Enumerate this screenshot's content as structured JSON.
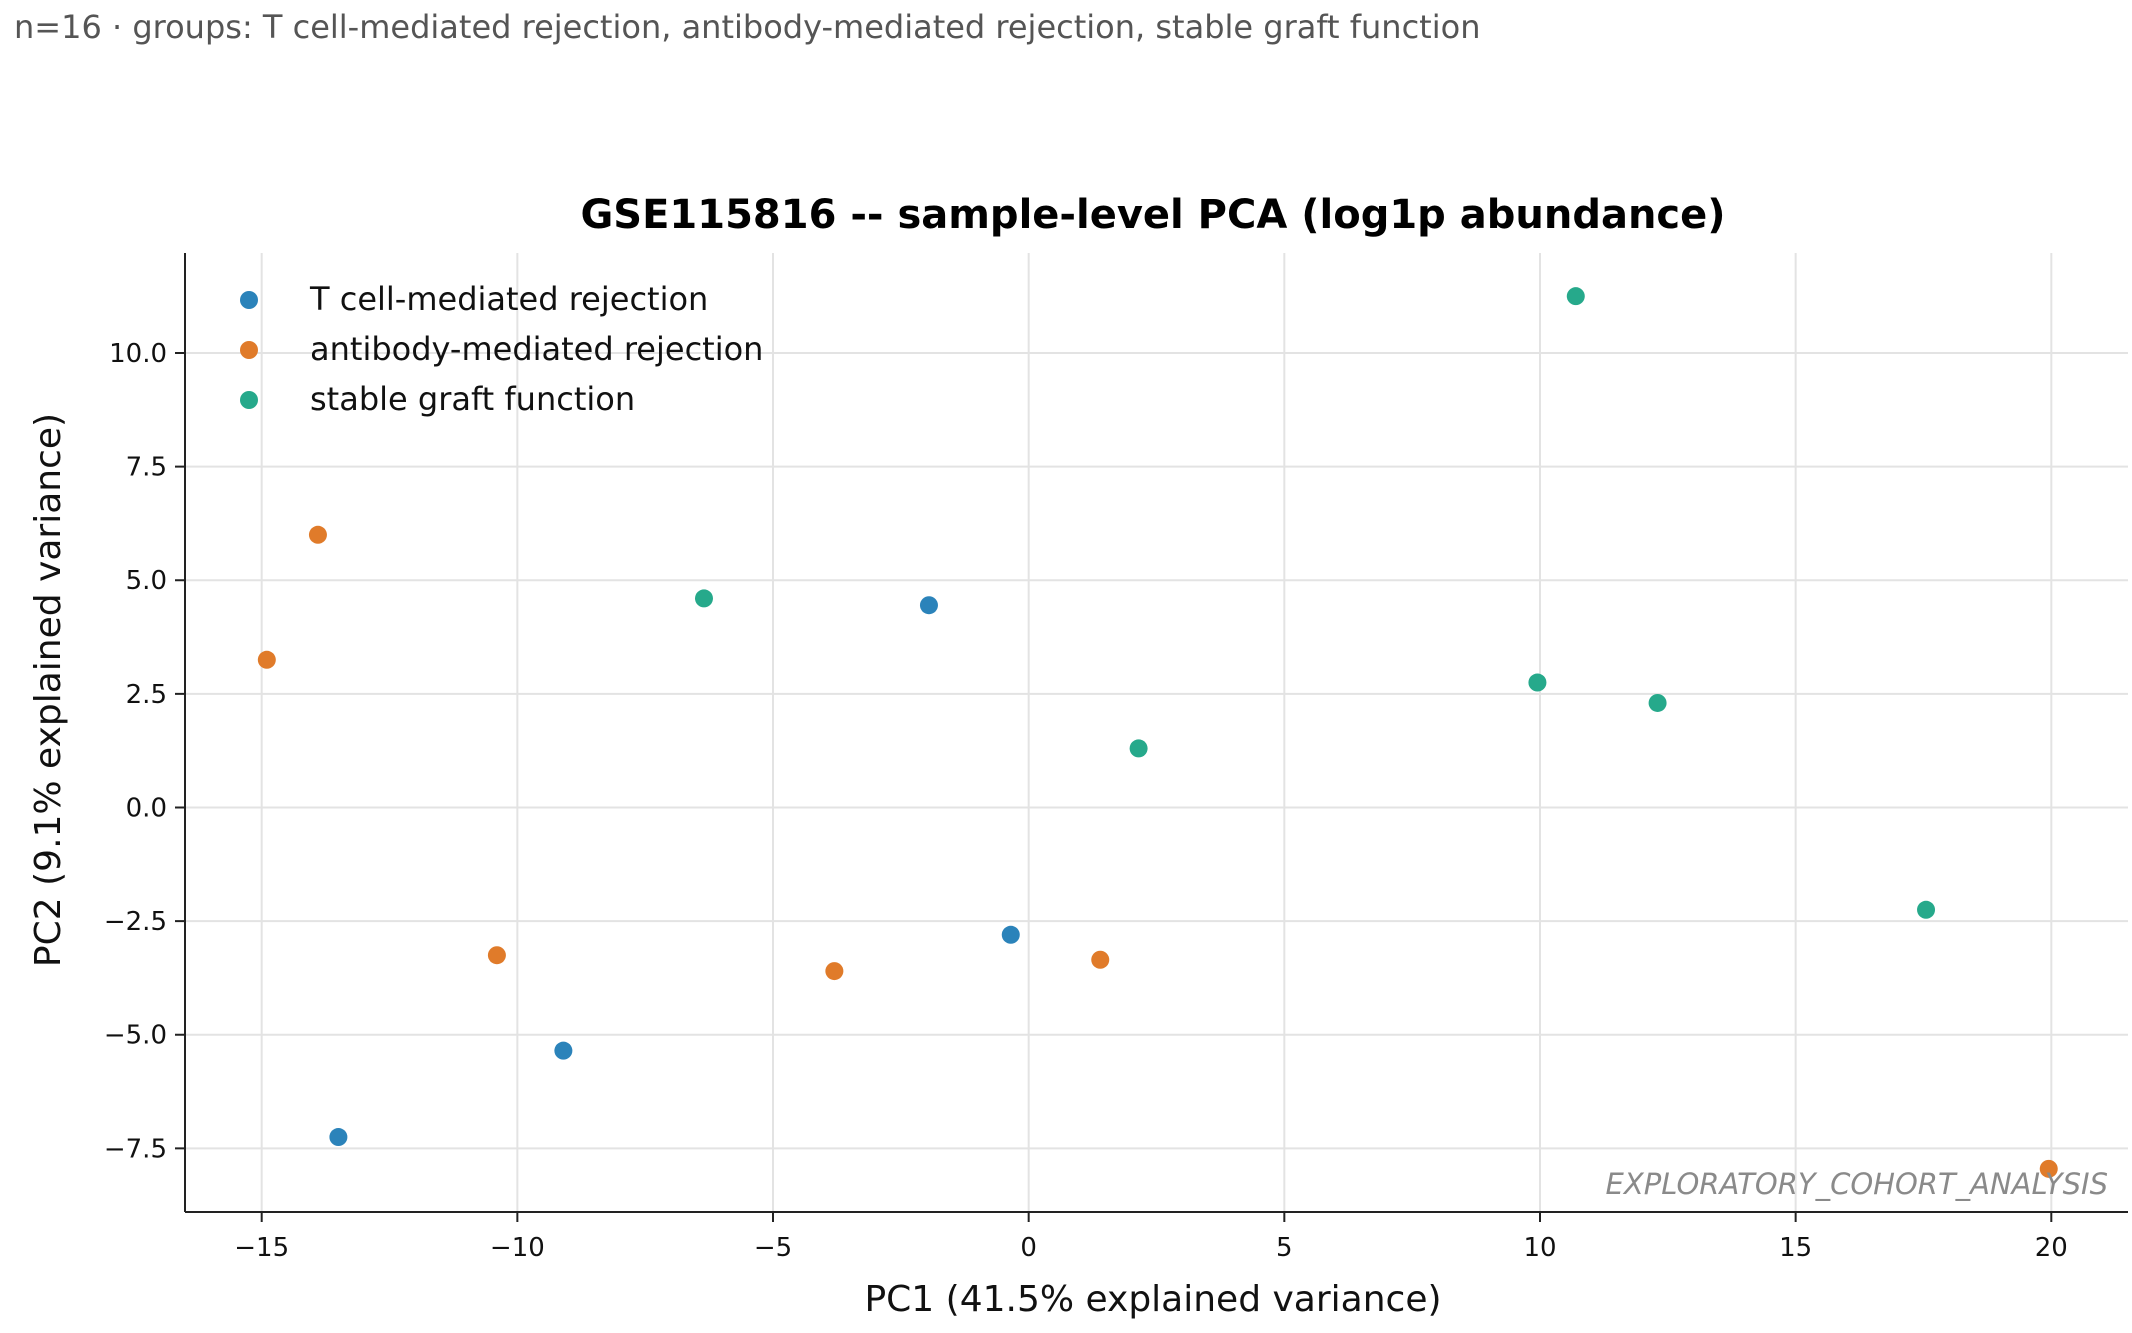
{
  "header": {
    "subtitle": "n=16 · groups: T cell-mediated rejection, antibody-mediated rejection, stable graft function"
  },
  "watermark": "EXPLORATORY_COHORT_ANALYSIS",
  "chart_data": {
    "type": "scatter",
    "title": "GSE115816 -- sample-level PCA (log1p abundance)",
    "xlabel": "PC1 (41.5% explained variance)",
    "ylabel": "PC2 (9.1% explained variance)",
    "xlim": [
      -16.5,
      21.5
    ],
    "ylim": [
      -8.9,
      12.2
    ],
    "xticks": [
      -15,
      -10,
      -5,
      0,
      5,
      10,
      15,
      20
    ],
    "xtick_labels": [
      "−15",
      "−10",
      "−5",
      "0",
      "5",
      "10",
      "15",
      "20"
    ],
    "yticks": [
      -7.5,
      -5.0,
      -2.5,
      0.0,
      2.5,
      5.0,
      7.5,
      10.0
    ],
    "ytick_labels": [
      "−7.5",
      "−5.0",
      "−2.5",
      "0.0",
      "2.5",
      "5.0",
      "7.5",
      "10.0"
    ],
    "grid": true,
    "legend_position": "top-left",
    "series": [
      {
        "name": "T cell-mediated rejection",
        "color": "#2b83ba",
        "points": [
          [
            -13.5,
            -7.25
          ],
          [
            -9.1,
            -5.35
          ],
          [
            -1.95,
            4.45
          ],
          [
            -0.35,
            -2.8
          ]
        ]
      },
      {
        "name": "antibody-mediated rejection",
        "color": "#e07b2a",
        "points": [
          [
            -14.9,
            3.25
          ],
          [
            -13.9,
            6.0
          ],
          [
            -10.4,
            -3.25
          ],
          [
            -3.8,
            -3.6
          ],
          [
            1.4,
            -3.35
          ],
          [
            19.95,
            -7.95
          ]
        ]
      },
      {
        "name": "stable graft function",
        "color": "#26a98b",
        "points": [
          [
            -6.35,
            4.6
          ],
          [
            2.15,
            1.3
          ],
          [
            9.95,
            2.75
          ],
          [
            10.7,
            11.25
          ],
          [
            12.3,
            2.3
          ],
          [
            17.55,
            -2.25
          ]
        ]
      }
    ]
  }
}
